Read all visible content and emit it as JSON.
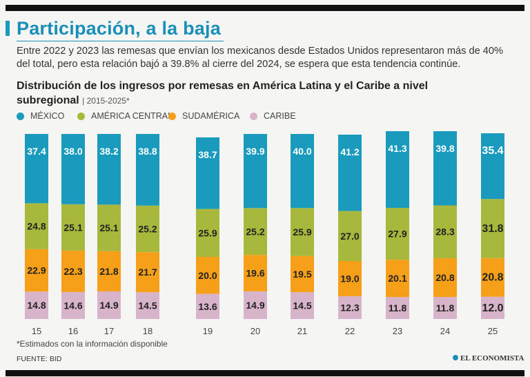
{
  "header": {
    "title": "Participación, a la baja",
    "subtitle": "Entre 2022 y 2023 las remesas que envían los mexicanos desde Estados Unidos representaron más de 40% del total, pero esta relación bajó a 39.8% al cierre del 2024, se espera que esta tendencia continúe."
  },
  "chart_title": {
    "main": "Distribución de los ingresos por remesas en América Latina y el Caribe a nivel subregional",
    "period": "| 2015-2025*"
  },
  "colors": {
    "mexico": "#1a9bbd",
    "america_central": "#a8b83c",
    "sudamerica": "#f6a01a",
    "caribe": "#d7b4c9"
  },
  "chart_data": {
    "type": "bar",
    "stacked": true,
    "normalized_percent": true,
    "categories": [
      "15",
      "16",
      "17",
      "18",
      "19",
      "20",
      "21",
      "22",
      "23",
      "24",
      "25"
    ],
    "series": [
      {
        "name": "MÉXICO",
        "key": "mexico",
        "values": [
          37.4,
          38.0,
          38.2,
          38.8,
          38.7,
          39.9,
          40.0,
          41.2,
          41.3,
          39.8,
          35.4
        ]
      },
      {
        "name": "AMÉRICA CENTRAL",
        "key": "america_central",
        "values": [
          24.8,
          25.1,
          25.1,
          25.2,
          25.9,
          25.2,
          25.9,
          27.0,
          27.9,
          28.3,
          31.8
        ]
      },
      {
        "name": "SUDAMÉRICA",
        "key": "sudamerica",
        "values": [
          22.9,
          22.3,
          21.8,
          21.7,
          20.0,
          19.6,
          19.5,
          19.0,
          20.1,
          20.8,
          20.8
        ]
      },
      {
        "name": "CARIBE",
        "key": "caribe",
        "values": [
          14.8,
          14.6,
          14.9,
          14.5,
          13.6,
          14.9,
          14.5,
          12.3,
          11.8,
          11.8,
          12.0
        ]
      }
    ],
    "value_labels": [
      [
        "37.4",
        "38.0",
        "38.2",
        "38.8",
        "38.7",
        "39.9",
        "40.0",
        "41.2",
        "41.3",
        "39.8",
        "35.4"
      ],
      [
        "24.8",
        "25.1",
        "25.1",
        "25.2",
        "25.9",
        "25.2",
        "25.9",
        "27.0",
        "27.9",
        "28.3",
        "31.8"
      ],
      [
        "22.9",
        "22.3",
        "21.8",
        "21.7",
        "20.0",
        "19.6",
        "19.5",
        "19.0",
        "20.1",
        "20.8",
        "20.8"
      ],
      [
        "14.8",
        "14.6",
        "14.9",
        "14.5",
        "13.6",
        "14.9",
        "14.5",
        "12.3",
        "11.8",
        "11.8",
        "12.0"
      ]
    ],
    "highlight_category": "25",
    "ylim": [
      0,
      100
    ],
    "xlabel": "",
    "ylabel": "",
    "legend_position": "top-left"
  },
  "footnote": "*Estimados con la información disponible",
  "source": "FUENTE: BID",
  "brand": "EL ECONOMISTA"
}
